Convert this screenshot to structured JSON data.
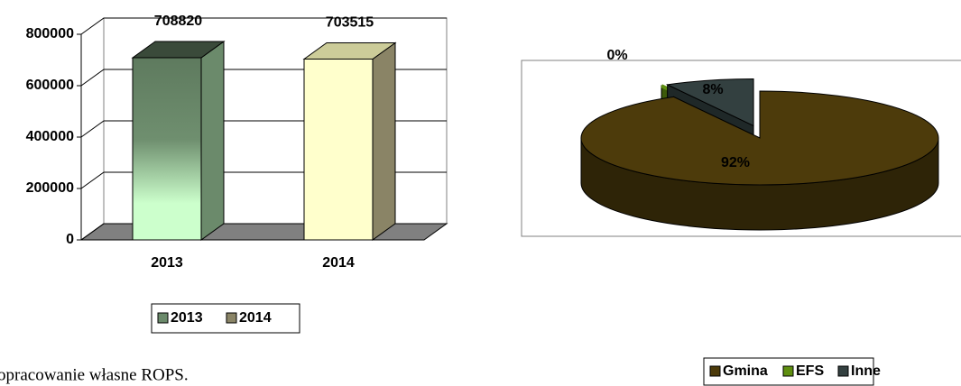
{
  "chart_data": [
    {
      "type": "bar",
      "categories": [
        "2013",
        "2014"
      ],
      "series": [
        {
          "name": "2013",
          "color": "#6b8a6b",
          "values": [
            708820,
            null
          ]
        },
        {
          "name": "2014",
          "color": "#8a8466",
          "values": [
            null,
            703515
          ]
        }
      ],
      "ylim": [
        0,
        800000
      ],
      "yticks": [
        0,
        200000,
        400000,
        600000,
        800000
      ],
      "grid": true,
      "legend": "bottom"
    },
    {
      "type": "pie",
      "categories": [
        "Gmina",
        "EFS",
        "Inne"
      ],
      "values": [
        92,
        0,
        8
      ],
      "value_labels": [
        "92%",
        "0%",
        "8%"
      ],
      "colors": [
        "#4d3b0b",
        "#5f8f10",
        "#334040"
      ],
      "legend": "bottom"
    }
  ],
  "caption": "opracowanie własne ROPS."
}
